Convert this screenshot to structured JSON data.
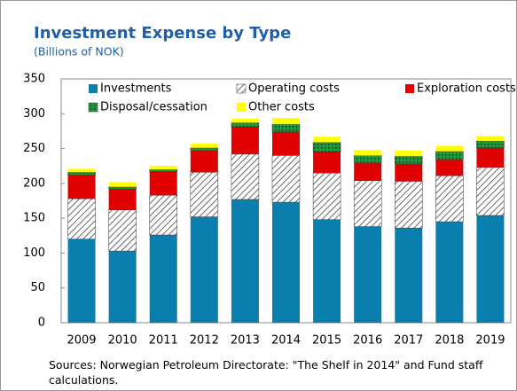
{
  "chart_data": {
    "type": "stacked-bar",
    "title": "Investment Expense by Type",
    "subtitle": "(Billions of NOK)",
    "categories": [
      "2009",
      "2010",
      "2011",
      "2012",
      "2013",
      "2014",
      "2015",
      "2016",
      "2017",
      "2018",
      "2019"
    ],
    "series": [
      {
        "name": "Investments",
        "color": "#0a7fae",
        "pattern": "solid",
        "values": [
          120,
          103,
          126,
          152,
          177,
          173,
          148,
          138,
          136,
          145,
          154
        ]
      },
      {
        "name": "Operating costs",
        "color": "#000000",
        "pattern": "diagonal",
        "values": [
          58,
          59,
          57,
          64,
          65,
          67,
          67,
          66,
          67,
          66,
          69
        ]
      },
      {
        "name": "Exploration costs",
        "color": "#e00000",
        "pattern": "solid",
        "values": [
          34,
          30,
          34,
          31,
          39,
          34,
          30,
          25,
          25,
          23,
          28
        ]
      },
      {
        "name": "Disposal/cessation",
        "color": "#1a9a3a",
        "pattern": "dots",
        "values": [
          4,
          3,
          3,
          4,
          6,
          11,
          14,
          11,
          11,
          12,
          10
        ]
      },
      {
        "name": "Other costs",
        "color": "#ffff00",
        "pattern": "solid",
        "values": [
          5,
          7,
          5,
          6,
          6,
          9,
          8,
          8,
          8,
          8,
          7
        ]
      }
    ],
    "ylim": [
      0,
      350
    ],
    "yticks": [
      0,
      50,
      100,
      150,
      200,
      250,
      300,
      350
    ],
    "grid": false,
    "legend": "top",
    "note": "Sources: Norwegian Petroleum Directorate: \"The Shelf in 2014\" and Fund staff calculations."
  }
}
